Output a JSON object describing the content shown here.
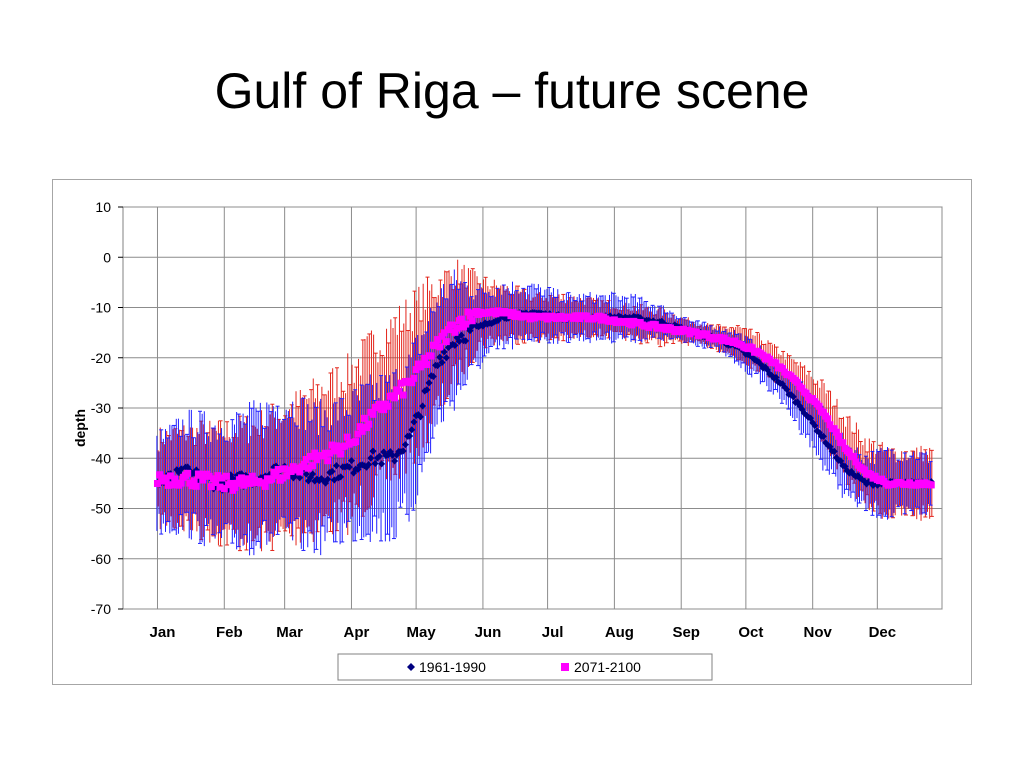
{
  "slide": {
    "title": "Gulf of Riga – future scene"
  },
  "chart_data": {
    "type": "scatter",
    "title": "",
    "xlabel": "",
    "ylabel": "depth",
    "ylim": [
      -70,
      10
    ],
    "y_ticks": [
      10,
      0,
      -10,
      -20,
      -30,
      -40,
      -50,
      -60,
      -70
    ],
    "x_unit": "day of year",
    "xlim": [
      -15,
      365
    ],
    "months": [
      {
        "label": "Jan",
        "day": 1
      },
      {
        "label": "Feb",
        "day": 32
      },
      {
        "label": "Mar",
        "day": 60
      },
      {
        "label": "Apr",
        "day": 91
      },
      {
        "label": "May",
        "day": 121
      },
      {
        "label": "Jun",
        "day": 152
      },
      {
        "label": "Jul",
        "day": 182
      },
      {
        "label": "Aug",
        "day": 213
      },
      {
        "label": "Sep",
        "day": 244
      },
      {
        "label": "Oct",
        "day": 274
      },
      {
        "label": "Nov",
        "day": 305
      },
      {
        "label": "Dec",
        "day": 335
      }
    ],
    "grid": true,
    "legend_position": "bottom",
    "series": [
      {
        "name": "1961-1990",
        "color": "#000080",
        "error_color": "#1f1fff",
        "marker": "diamond",
        "x": [
          1,
          15,
          30,
          45,
          60,
          75,
          90,
          100,
          110,
          118,
          125,
          132,
          140,
          150,
          160,
          175,
          190,
          205,
          220,
          235,
          250,
          260,
          270,
          280,
          290,
          300,
          310,
          320,
          330,
          340,
          350,
          360
        ],
        "y": [
          -45,
          -43,
          -45,
          -44,
          -42,
          -44,
          -42,
          -40,
          -40,
          -36,
          -28,
          -20,
          -16,
          -14,
          -12,
          -11,
          -12,
          -12,
          -12,
          -13,
          -15,
          -16,
          -18,
          -21,
          -25,
          -30,
          -36,
          -42,
          -45,
          -45,
          -45,
          -45
        ],
        "err": [
          8,
          10,
          11,
          12,
          13,
          12,
          12,
          13,
          14,
          14,
          13,
          12,
          11,
          7,
          6,
          5,
          4,
          4,
          4,
          3,
          2,
          2,
          3,
          3,
          3,
          4,
          5,
          5,
          5,
          6,
          6,
          5
        ]
      },
      {
        "name": "2071-2100",
        "color": "#ff00ff",
        "error_color": "#e3251b",
        "marker": "square",
        "x": [
          1,
          15,
          30,
          45,
          60,
          75,
          90,
          100,
          110,
          118,
          125,
          132,
          140,
          150,
          160,
          175,
          190,
          205,
          220,
          235,
          250,
          260,
          270,
          280,
          290,
          300,
          310,
          320,
          330,
          340,
          350,
          360
        ],
        "y": [
          -44,
          -44,
          -45,
          -45,
          -43,
          -40,
          -37,
          -32,
          -28,
          -25,
          -21,
          -17,
          -13,
          -11,
          -11,
          -12,
          -12,
          -12,
          -13,
          -14,
          -15,
          -16,
          -17,
          -19,
          -22,
          -26,
          -31,
          -38,
          -43,
          -45,
          -45,
          -45
        ],
        "err": [
          8,
          9,
          10,
          11,
          12,
          13,
          14,
          14,
          14,
          14,
          13,
          12,
          10,
          6,
          5,
          4,
          4,
          3,
          3,
          3,
          2,
          2,
          3,
          3,
          3,
          4,
          5,
          6,
          6,
          6,
          6,
          6
        ]
      }
    ]
  }
}
